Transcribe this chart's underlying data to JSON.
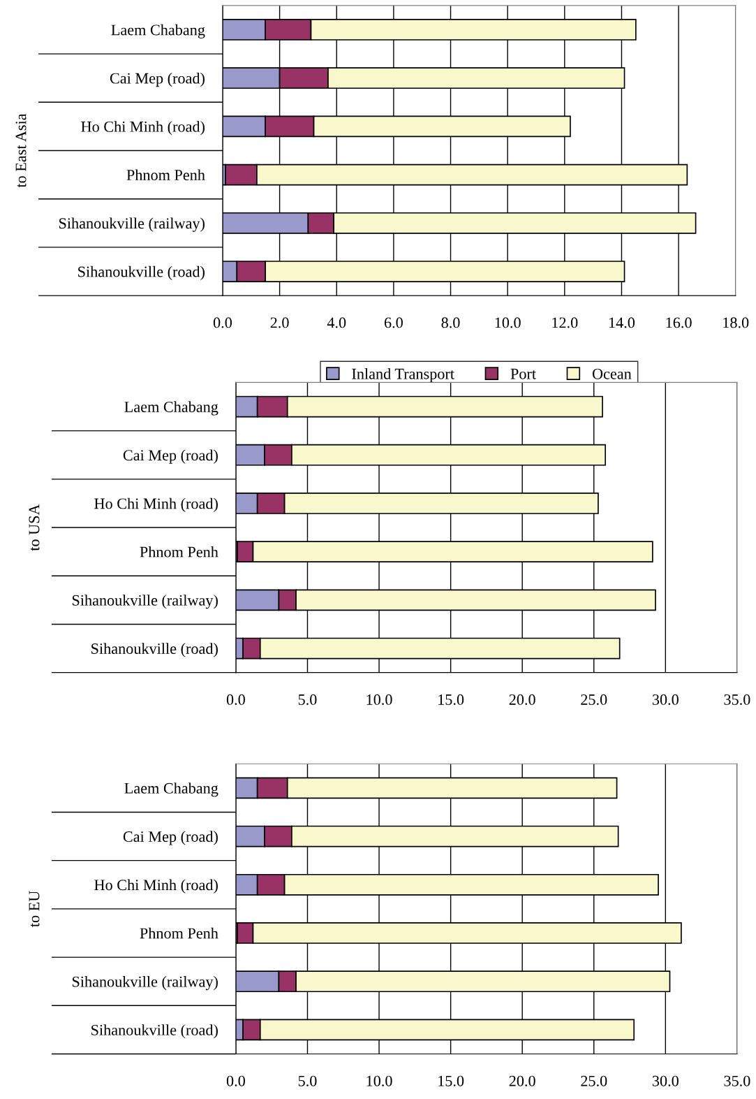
{
  "chart_data": [
    {
      "type": "bar",
      "orientation": "horizontal",
      "stacked": true,
      "ylabel": "to East Asia",
      "categories": [
        "Laem Chabang",
        "Cai Mep (road)",
        "Ho Chi Minh (road)",
        "Phnom Penh",
        "Sihanoukville (railway)",
        "Sihanoukville (road)"
      ],
      "series": [
        {
          "name": "Inland Transport",
          "color": "#9999cc",
          "values": [
            1.5,
            2.0,
            1.5,
            0.1,
            3.0,
            0.5
          ]
        },
        {
          "name": "Port",
          "color": "#993366",
          "values": [
            1.6,
            1.7,
            1.7,
            1.1,
            0.9,
            1.0
          ]
        },
        {
          "name": "Ocean",
          "color": "#f8f8cc",
          "values": [
            11.4,
            10.4,
            9.0,
            15.1,
            12.7,
            12.6
          ]
        }
      ],
      "xlim": [
        0,
        18
      ],
      "xticks": [
        {
          "value": 0,
          "label": "0.0"
        },
        {
          "value": 2,
          "label": "2.0"
        },
        {
          "value": 4,
          "label": "4.0"
        },
        {
          "value": 6,
          "label": "6.0"
        },
        {
          "value": 8,
          "label": "8.0"
        },
        {
          "value": 10,
          "label": "10.0"
        },
        {
          "value": 12,
          "label": "12.0"
        },
        {
          "value": 14,
          "label": "14.0"
        },
        {
          "value": 16,
          "label": "16.0"
        },
        {
          "value": 18,
          "label": "18.0"
        }
      ],
      "grid": "x",
      "legend": "bottom"
    },
    {
      "type": "bar",
      "orientation": "horizontal",
      "stacked": true,
      "ylabel": "to USA",
      "categories": [
        "Laem Chabang",
        "Cai Mep (road)",
        "Ho Chi Minh (road)",
        "Phnom Penh",
        "Sihanoukville (railway)",
        "Sihanoukville (road)"
      ],
      "series": [
        {
          "color": "#9999cc",
          "values": [
            1.5,
            2.0,
            1.5,
            0.1,
            3.0,
            0.5
          ]
        },
        {
          "color": "#993366",
          "values": [
            2.1,
            1.9,
            1.9,
            1.1,
            1.2,
            1.2
          ]
        },
        {
          "color": "#f8f8cc",
          "values": [
            22.0,
            21.9,
            21.9,
            27.9,
            25.1,
            25.1
          ]
        }
      ],
      "xlim": [
        0,
        35
      ],
      "xticks": [
        {
          "value": 0,
          "label": "0.0"
        },
        {
          "value": 5,
          "label": "5.0"
        },
        {
          "value": 10,
          "label": "10.0"
        },
        {
          "value": 15,
          "label": "15.0"
        },
        {
          "value": 20,
          "label": "20.0"
        },
        {
          "value": 25,
          "label": "25.0"
        },
        {
          "value": 30,
          "label": "30.0"
        },
        {
          "value": 35,
          "label": "35.0"
        }
      ],
      "grid": "x"
    },
    {
      "type": "bar",
      "orientation": "horizontal",
      "stacked": true,
      "ylabel": "to EU",
      "categories": [
        "Laem Chabang",
        "Cai Mep (road)",
        "Ho Chi Minh (road)",
        "Phnom Penh",
        "Sihanoukville (railway)",
        "Sihanoukville (road)"
      ],
      "series": [
        {
          "color": "#9999cc",
          "values": [
            1.5,
            2.0,
            1.5,
            0.1,
            3.0,
            0.5
          ]
        },
        {
          "color": "#993366",
          "values": [
            2.1,
            1.9,
            1.9,
            1.1,
            1.2,
            1.2
          ]
        },
        {
          "color": "#f8f8cc",
          "values": [
            23.0,
            22.8,
            26.1,
            29.9,
            26.1,
            26.1
          ]
        }
      ],
      "xlim": [
        0,
        35
      ],
      "xticks": [
        {
          "value": 0,
          "label": "0.0"
        },
        {
          "value": 5,
          "label": "5.0"
        },
        {
          "value": 10,
          "label": "10.0"
        },
        {
          "value": 15,
          "label": "15.0"
        },
        {
          "value": 20,
          "label": "20.0"
        },
        {
          "value": 25,
          "label": "25.0"
        },
        {
          "value": 30,
          "label": "30.0"
        },
        {
          "value": 35,
          "label": "35.0"
        }
      ],
      "grid": "x"
    }
  ]
}
